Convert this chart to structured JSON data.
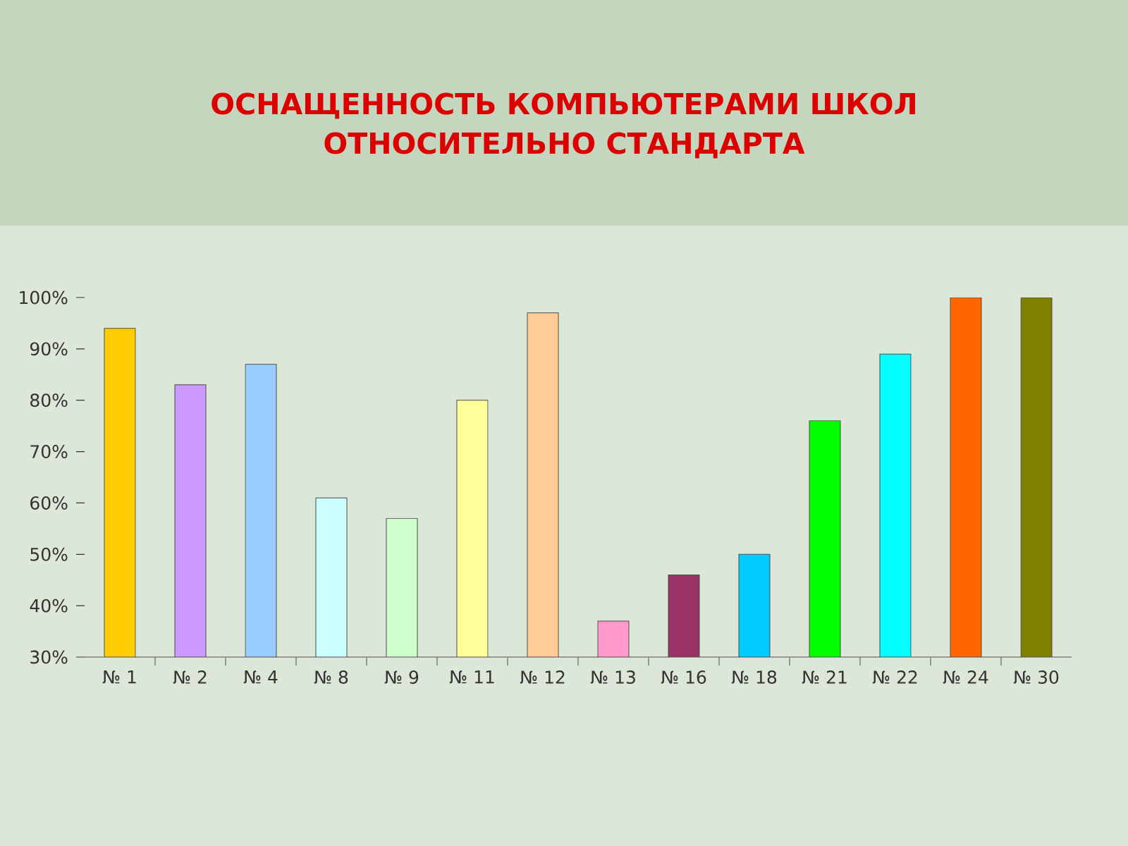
{
  "chart_data": {
    "type": "bar",
    "title": "ОСНАЩЕННОСТЬ КОМПЬЮТЕРАМИ ШКОЛ ОТНОСИТЕЛЬНО СТАНДАРТА",
    "categories": [
      "№ 1",
      "№ 2",
      "№ 4",
      "№ 8",
      "№ 9",
      "№ 11",
      "№ 12",
      "№ 13",
      "№ 16",
      "№ 18",
      "№ 21",
      "№ 22",
      "№ 24",
      "№ 30"
    ],
    "values": [
      94,
      83,
      87,
      61,
      57,
      80,
      97,
      37,
      46,
      50,
      76,
      89,
      100,
      100
    ],
    "colors": [
      "#ffcc00",
      "#cc99ff",
      "#99ccff",
      "#ccffff",
      "#ccffcc",
      "#ffff99",
      "#ffcc99",
      "#ff99cc",
      "#993366",
      "#00ccff",
      "#00ff00",
      "#00ffff",
      "#ff6600",
      "#808000"
    ],
    "ylim": [
      30,
      100
    ],
    "yticks": [
      {
        "value": 30,
        "label": "30%"
      },
      {
        "value": 40,
        "label": "40%"
      },
      {
        "value": 50,
        "label": "50%"
      },
      {
        "value": 60,
        "label": "60%"
      },
      {
        "value": 70,
        "label": "70%"
      },
      {
        "value": 80,
        "label": "80%"
      },
      {
        "value": 90,
        "label": "90%"
      },
      {
        "value": 100,
        "label": "100%"
      }
    ]
  }
}
